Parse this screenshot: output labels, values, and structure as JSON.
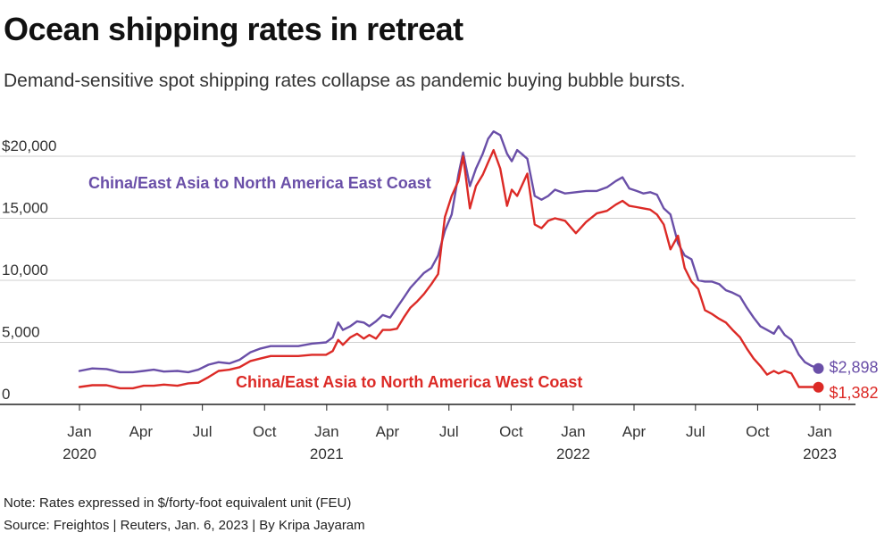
{
  "header": {
    "title": "Ocean shipping rates in retreat",
    "subtitle": "Demand-sensitive spot shipping rates collapse as pandemic buying bubble bursts."
  },
  "footer": {
    "note": "Note: Rates expressed in $/forty-foot equivalent unit (FEU)",
    "source": "Source: Freightos | Reuters, Jan. 6, 2023 | By Kripa Jayaram"
  },
  "colors": {
    "east_coast": "#6a4fa8",
    "west_coast": "#dc2a26",
    "grid": "#cfcfcf",
    "axis": "#222222"
  },
  "chart_data": {
    "type": "line",
    "title": "Ocean shipping rates in retreat",
    "subtitle": "Demand-sensitive spot shipping rates collapse as pandemic buying bubble bursts.",
    "xlabel": "",
    "ylabel": "",
    "ylim": [
      0,
      22000
    ],
    "xlim": [
      "2019-12-15",
      "2023-01-15"
    ],
    "grid": "horizontal",
    "y_ticks": [
      {
        "value": 0,
        "label": "0"
      },
      {
        "value": 5000,
        "label": "5,000"
      },
      {
        "value": 10000,
        "label": "10,000"
      },
      {
        "value": 15000,
        "label": "15,000"
      },
      {
        "value": 20000,
        "label": "$20,000"
      }
    ],
    "x_ticks": [
      {
        "date": "2020-01-01",
        "label": "Jan",
        "year": "2020"
      },
      {
        "date": "2020-04-01",
        "label": "Apr",
        "year": ""
      },
      {
        "date": "2020-07-01",
        "label": "Jul",
        "year": ""
      },
      {
        "date": "2020-10-01",
        "label": "Oct",
        "year": ""
      },
      {
        "date": "2021-01-01",
        "label": "Jan",
        "year": "2021"
      },
      {
        "date": "2021-04-01",
        "label": "Apr",
        "year": ""
      },
      {
        "date": "2021-07-01",
        "label": "Jul",
        "year": ""
      },
      {
        "date": "2021-10-01",
        "label": "Oct",
        "year": ""
      },
      {
        "date": "2022-01-01",
        "label": "Jan",
        "year": "2022"
      },
      {
        "date": "2022-04-01",
        "label": "Apr",
        "year": ""
      },
      {
        "date": "2022-07-01",
        "label": "Jul",
        "year": ""
      },
      {
        "date": "2022-10-01",
        "label": "Oct",
        "year": ""
      },
      {
        "date": "2023-01-01",
        "label": "Jan",
        "year": "2023"
      }
    ],
    "series": [
      {
        "name": "China/East Asia to North America East Coast",
        "color": "#6a4fa8",
        "end_label": "$2,898",
        "points": [
          [
            "2020-01-01",
            2700
          ],
          [
            "2020-01-20",
            2900
          ],
          [
            "2020-02-10",
            2850
          ],
          [
            "2020-03-01",
            2600
          ],
          [
            "2020-03-20",
            2600
          ],
          [
            "2020-04-05",
            2700
          ],
          [
            "2020-04-20",
            2800
          ],
          [
            "2020-05-05",
            2650
          ],
          [
            "2020-05-25",
            2700
          ],
          [
            "2020-06-10",
            2600
          ],
          [
            "2020-06-25",
            2800
          ],
          [
            "2020-07-10",
            3200
          ],
          [
            "2020-07-25",
            3400
          ],
          [
            "2020-08-10",
            3300
          ],
          [
            "2020-08-25",
            3600
          ],
          [
            "2020-09-10",
            4200
          ],
          [
            "2020-09-25",
            4500
          ],
          [
            "2020-10-10",
            4700
          ],
          [
            "2020-11-01",
            4700
          ],
          [
            "2020-11-20",
            4700
          ],
          [
            "2020-12-10",
            4900
          ],
          [
            "2020-12-31",
            5000
          ],
          [
            "2021-01-10",
            5400
          ],
          [
            "2021-01-18",
            6600
          ],
          [
            "2021-01-25",
            6000
          ],
          [
            "2021-02-05",
            6300
          ],
          [
            "2021-02-15",
            6700
          ],
          [
            "2021-02-25",
            6600
          ],
          [
            "2021-03-05",
            6300
          ],
          [
            "2021-03-15",
            6700
          ],
          [
            "2021-03-25",
            7200
          ],
          [
            "2021-04-05",
            7000
          ],
          [
            "2021-04-15",
            7800
          ],
          [
            "2021-04-25",
            8600
          ],
          [
            "2021-05-05",
            9400
          ],
          [
            "2021-05-15",
            10000
          ],
          [
            "2021-05-25",
            10600
          ],
          [
            "2021-06-05",
            11000
          ],
          [
            "2021-06-15",
            12000
          ],
          [
            "2021-06-25",
            14000
          ],
          [
            "2021-07-05",
            15300
          ],
          [
            "2021-07-15",
            18500
          ],
          [
            "2021-07-22",
            20300
          ],
          [
            "2021-08-01",
            17600
          ],
          [
            "2021-08-10",
            19000
          ],
          [
            "2021-08-20",
            20200
          ],
          [
            "2021-08-28",
            21400
          ],
          [
            "2021-09-05",
            22000
          ],
          [
            "2021-09-15",
            21700
          ],
          [
            "2021-09-25",
            20200
          ],
          [
            "2021-10-02",
            19600
          ],
          [
            "2021-10-10",
            20500
          ],
          [
            "2021-10-25",
            19800
          ],
          [
            "2021-11-05",
            16800
          ],
          [
            "2021-11-15",
            16500
          ],
          [
            "2021-11-25",
            16800
          ],
          [
            "2021-12-05",
            17300
          ],
          [
            "2021-12-20",
            17000
          ],
          [
            "2022-01-05",
            17100
          ],
          [
            "2022-01-20",
            17200
          ],
          [
            "2022-02-05",
            17200
          ],
          [
            "2022-02-20",
            17500
          ],
          [
            "2022-03-05",
            18000
          ],
          [
            "2022-03-15",
            18300
          ],
          [
            "2022-03-25",
            17400
          ],
          [
            "2022-04-05",
            17200
          ],
          [
            "2022-04-15",
            17000
          ],
          [
            "2022-04-25",
            17100
          ],
          [
            "2022-05-05",
            16900
          ],
          [
            "2022-05-15",
            15800
          ],
          [
            "2022-05-25",
            15300
          ],
          [
            "2022-06-05",
            13000
          ],
          [
            "2022-06-15",
            12000
          ],
          [
            "2022-06-25",
            11700
          ],
          [
            "2022-07-05",
            10000
          ],
          [
            "2022-07-15",
            9900
          ],
          [
            "2022-07-25",
            9900
          ],
          [
            "2022-08-05",
            9700
          ],
          [
            "2022-08-15",
            9200
          ],
          [
            "2022-08-25",
            9000
          ],
          [
            "2022-09-05",
            8700
          ],
          [
            "2022-09-15",
            7800
          ],
          [
            "2022-09-25",
            7000
          ],
          [
            "2022-10-05",
            6300
          ],
          [
            "2022-10-15",
            6000
          ],
          [
            "2022-10-25",
            5700
          ],
          [
            "2022-11-01",
            6300
          ],
          [
            "2022-11-10",
            5600
          ],
          [
            "2022-11-20",
            5200
          ],
          [
            "2022-12-01",
            4000
          ],
          [
            "2022-12-10",
            3400
          ],
          [
            "2022-12-20",
            3100
          ],
          [
            "2022-12-30",
            2898
          ]
        ]
      },
      {
        "name": "China/East Asia to North America West Coast",
        "color": "#dc2a26",
        "end_label": "$1,382",
        "points": [
          [
            "2020-01-01",
            1400
          ],
          [
            "2020-01-20",
            1550
          ],
          [
            "2020-02-10",
            1550
          ],
          [
            "2020-03-01",
            1300
          ],
          [
            "2020-03-20",
            1300
          ],
          [
            "2020-04-05",
            1500
          ],
          [
            "2020-04-20",
            1500
          ],
          [
            "2020-05-05",
            1600
          ],
          [
            "2020-05-25",
            1500
          ],
          [
            "2020-06-10",
            1700
          ],
          [
            "2020-06-25",
            1750
          ],
          [
            "2020-07-10",
            2200
          ],
          [
            "2020-07-25",
            2700
          ],
          [
            "2020-08-10",
            2800
          ],
          [
            "2020-08-25",
            3000
          ],
          [
            "2020-09-10",
            3500
          ],
          [
            "2020-09-25",
            3700
          ],
          [
            "2020-10-10",
            3900
          ],
          [
            "2020-11-01",
            3900
          ],
          [
            "2020-11-20",
            3900
          ],
          [
            "2020-12-10",
            4000
          ],
          [
            "2020-12-31",
            4000
          ],
          [
            "2021-01-10",
            4300
          ],
          [
            "2021-01-18",
            5200
          ],
          [
            "2021-01-25",
            4800
          ],
          [
            "2021-02-05",
            5400
          ],
          [
            "2021-02-15",
            5700
          ],
          [
            "2021-02-25",
            5300
          ],
          [
            "2021-03-05",
            5600
          ],
          [
            "2021-03-15",
            5300
          ],
          [
            "2021-03-25",
            6000
          ],
          [
            "2021-04-05",
            6000
          ],
          [
            "2021-04-15",
            6100
          ],
          [
            "2021-04-25",
            7000
          ],
          [
            "2021-05-05",
            7800
          ],
          [
            "2021-05-15",
            8300
          ],
          [
            "2021-05-25",
            8900
          ],
          [
            "2021-06-05",
            9700
          ],
          [
            "2021-06-15",
            10500
          ],
          [
            "2021-06-25",
            15100
          ],
          [
            "2021-07-05",
            16800
          ],
          [
            "2021-07-15",
            18000
          ],
          [
            "2021-07-22",
            20000
          ],
          [
            "2021-08-01",
            15800
          ],
          [
            "2021-08-10",
            17600
          ],
          [
            "2021-08-20",
            18500
          ],
          [
            "2021-08-28",
            19500
          ],
          [
            "2021-09-05",
            20500
          ],
          [
            "2021-09-15",
            19000
          ],
          [
            "2021-09-25",
            16000
          ],
          [
            "2021-10-02",
            17300
          ],
          [
            "2021-10-10",
            16800
          ],
          [
            "2021-10-25",
            18600
          ],
          [
            "2021-11-05",
            14500
          ],
          [
            "2021-11-15",
            14200
          ],
          [
            "2021-11-25",
            14800
          ],
          [
            "2021-12-05",
            15000
          ],
          [
            "2021-12-20",
            14800
          ],
          [
            "2022-01-05",
            13800
          ],
          [
            "2022-01-20",
            14700
          ],
          [
            "2022-02-05",
            15400
          ],
          [
            "2022-02-20",
            15600
          ],
          [
            "2022-03-05",
            16100
          ],
          [
            "2022-03-15",
            16400
          ],
          [
            "2022-03-25",
            16000
          ],
          [
            "2022-04-05",
            15900
          ],
          [
            "2022-04-15",
            15800
          ],
          [
            "2022-04-25",
            15700
          ],
          [
            "2022-05-05",
            15300
          ],
          [
            "2022-05-15",
            14500
          ],
          [
            "2022-05-25",
            12500
          ],
          [
            "2022-06-05",
            13600
          ],
          [
            "2022-06-15",
            11000
          ],
          [
            "2022-06-25",
            9900
          ],
          [
            "2022-07-05",
            9300
          ],
          [
            "2022-07-15",
            7600
          ],
          [
            "2022-07-25",
            7300
          ],
          [
            "2022-08-05",
            6900
          ],
          [
            "2022-08-15",
            6600
          ],
          [
            "2022-08-25",
            6000
          ],
          [
            "2022-09-05",
            5400
          ],
          [
            "2022-09-15",
            4500
          ],
          [
            "2022-09-25",
            3700
          ],
          [
            "2022-10-05",
            3100
          ],
          [
            "2022-10-15",
            2400
          ],
          [
            "2022-10-25",
            2700
          ],
          [
            "2022-11-01",
            2500
          ],
          [
            "2022-11-10",
            2700
          ],
          [
            "2022-11-20",
            2500
          ],
          [
            "2022-12-01",
            1400
          ],
          [
            "2022-12-10",
            1400
          ],
          [
            "2022-12-20",
            1400
          ],
          [
            "2022-12-30",
            1382
          ]
        ]
      }
    ]
  }
}
